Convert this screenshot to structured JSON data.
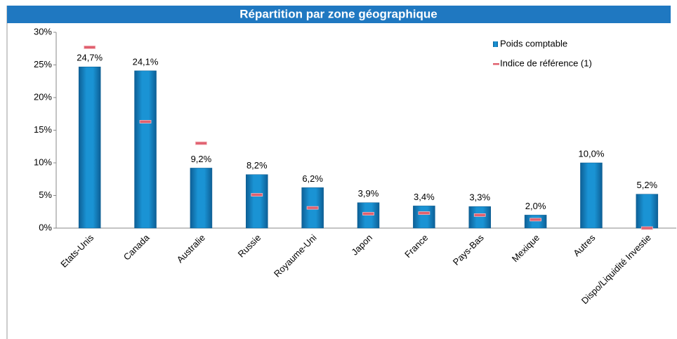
{
  "chart_data": {
    "type": "bar",
    "title": "Répartition par zone géographique",
    "categories": [
      "Etats-Unis",
      "Canada",
      "Australie",
      "Russie",
      "Royaume-Uni",
      "Japon",
      "France",
      "Pays-Bas",
      "Mexique",
      "Autres",
      "Dispo/Liquidité Investie"
    ],
    "series": [
      {
        "name": "Poids comptable",
        "type": "bar",
        "color": "#1a8fd0",
        "values": [
          24.7,
          24.1,
          9.2,
          8.2,
          6.2,
          3.9,
          3.4,
          3.3,
          2.0,
          10.0,
          5.2
        ],
        "value_labels": [
          "24,7%",
          "24,1%",
          "9,2%",
          "8,2%",
          "6,2%",
          "3,9%",
          "3,4%",
          "3,3%",
          "2,0%",
          "10,0%",
          "5,2%"
        ]
      },
      {
        "name": "Indice de référence (1)",
        "type": "marker",
        "color": "#e0606e",
        "values": [
          27.7,
          16.3,
          13.0,
          5.1,
          3.1,
          2.2,
          2.3,
          2.0,
          1.3,
          null,
          0
        ]
      }
    ],
    "ylim": [
      0,
      30
    ],
    "yticks": [
      {
        "value": 0,
        "label": "0%"
      },
      {
        "value": 5,
        "label": "5%"
      },
      {
        "value": 10,
        "label": "10%"
      },
      {
        "value": 15,
        "label": "15%"
      },
      {
        "value": 20,
        "label": "20%"
      },
      {
        "value": 25,
        "label": "25%"
      },
      {
        "value": 30,
        "label": "30%"
      }
    ],
    "legend": "top-right"
  }
}
